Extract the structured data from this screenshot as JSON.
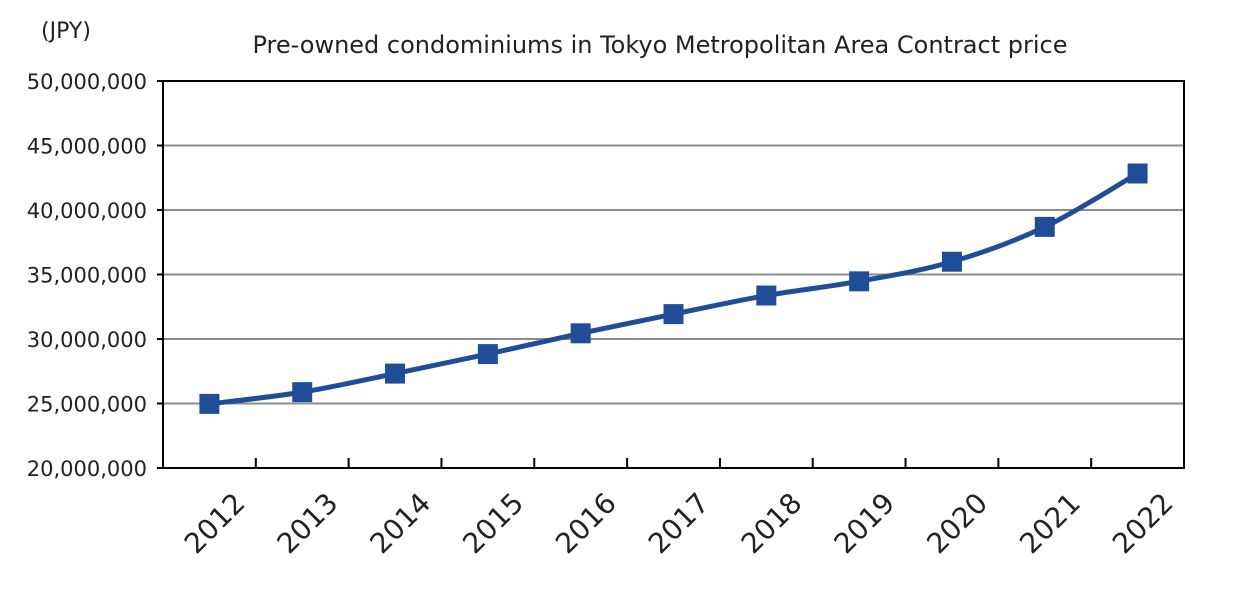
{
  "chart_data": {
    "type": "line",
    "title": "Pre-owned condominiums in Tokyo Metropolitan Area  Contract price",
    "unit_label": "(JPY)",
    "xlabel": "",
    "ylabel": "",
    "ylim": [
      20000000,
      50000000
    ],
    "yticks": [
      20000000,
      25000000,
      30000000,
      35000000,
      40000000,
      45000000,
      50000000
    ],
    "ytick_labels": [
      "20,000,000",
      "25,000,000",
      "30,000,000",
      "35,000,000",
      "40,000,000",
      "45,000,000",
      "50,000,000"
    ],
    "categories": [
      "2012",
      "2013",
      "2014",
      "2015",
      "2016",
      "2017",
      "2018",
      "2019",
      "2020",
      "2021",
      "2022"
    ],
    "series": [
      {
        "values": [
          24970000,
          25880000,
          27320000,
          28830000,
          30440000,
          31930000,
          33370000,
          34470000,
          35990000,
          38690000,
          42830000
        ],
        "color": "#1f4e96",
        "marker": "square"
      }
    ],
    "grid": true,
    "legend": "none",
    "colors": {
      "series": "#1f4e96",
      "grid": "#8c8c8c",
      "axis": "#000000"
    }
  }
}
